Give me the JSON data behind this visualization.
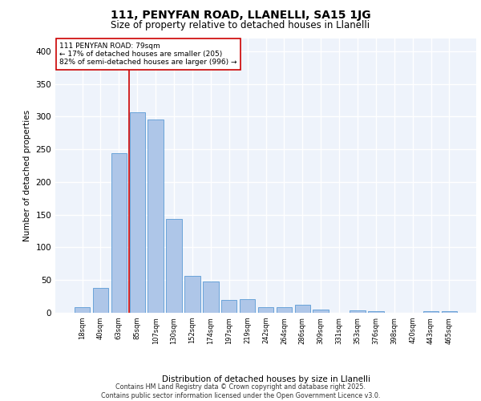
{
  "title1": "111, PENYFAN ROAD, LLANELLI, SA15 1JG",
  "title2": "Size of property relative to detached houses in Llanelli",
  "xlabel": "Distribution of detached houses by size in Llanelli",
  "ylabel": "Number of detached properties",
  "categories": [
    "18sqm",
    "40sqm",
    "63sqm",
    "85sqm",
    "107sqm",
    "130sqm",
    "152sqm",
    "174sqm",
    "197sqm",
    "219sqm",
    "242sqm",
    "264sqm",
    "286sqm",
    "309sqm",
    "331sqm",
    "353sqm",
    "376sqm",
    "398sqm",
    "420sqm",
    "443sqm",
    "465sqm"
  ],
  "values": [
    8,
    38,
    244,
    307,
    295,
    144,
    57,
    48,
    20,
    21,
    9,
    9,
    12,
    5,
    0,
    4,
    3,
    0,
    0,
    3,
    3
  ],
  "bar_color": "#aec6e8",
  "bar_edge_color": "#5b9bd5",
  "background_color": "#eef3fb",
  "grid_color": "#ffffff",
  "vline_color": "#cc0000",
  "annotation_text": "111 PENYFAN ROAD: 79sqm\n← 17% of detached houses are smaller (205)\n82% of semi-detached houses are larger (996) →",
  "annotation_box_color": "#ffffff",
  "annotation_box_edge": "#cc0000",
  "footer": "Contains HM Land Registry data © Crown copyright and database right 2025.\nContains public sector information licensed under the Open Government Licence v3.0.",
  "ylim": [
    0,
    420
  ],
  "yticks": [
    0,
    50,
    100,
    150,
    200,
    250,
    300,
    350,
    400
  ]
}
